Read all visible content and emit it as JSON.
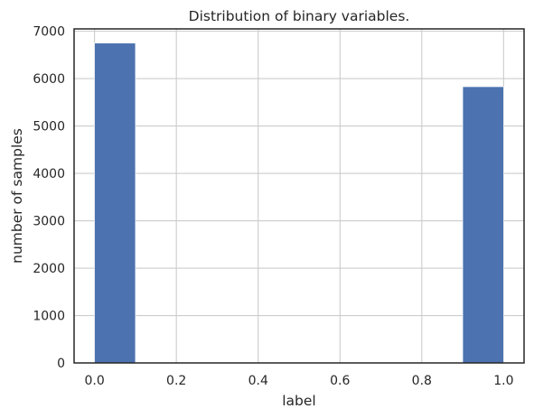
{
  "chart_data": {
    "type": "bar",
    "title": "Distribution of binary variables.",
    "xlabel": "label",
    "ylabel": "number of samples",
    "xlim": [
      -0.05,
      1.05
    ],
    "ylim": [
      0,
      7050
    ],
    "xticks": [
      0.0,
      0.2,
      0.4,
      0.6,
      0.8,
      1.0
    ],
    "xtick_labels": [
      "0.0",
      "0.2",
      "0.4",
      "0.6",
      "0.8",
      "1.0"
    ],
    "yticks": [
      0,
      1000,
      2000,
      3000,
      4000,
      5000,
      6000,
      7000
    ],
    "ytick_labels": [
      "0",
      "1000",
      "2000",
      "3000",
      "4000",
      "5000",
      "6000",
      "7000"
    ],
    "bins": [
      {
        "start": 0.0,
        "end": 0.1,
        "value": 6750
      },
      {
        "start": 0.9,
        "end": 1.0,
        "value": 5830
      }
    ],
    "grid": true,
    "colors": {
      "bar": "#4c72b0",
      "grid": "#cccccc",
      "axis": "#262626",
      "background": "#ffffff"
    }
  }
}
